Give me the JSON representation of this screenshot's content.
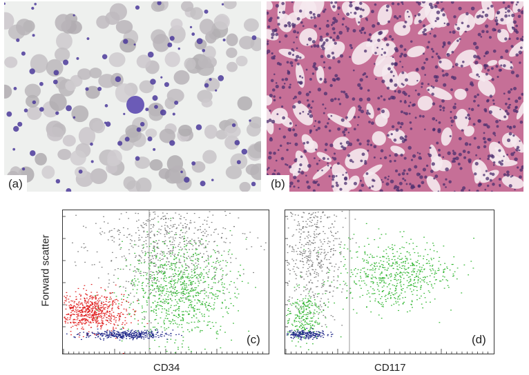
{
  "panels": {
    "a": {
      "label": "(a)"
    },
    "b": {
      "label": "(b)"
    },
    "c": {
      "label": "(c)",
      "xlabel": "CD34"
    },
    "d": {
      "label": "(d)",
      "xlabel": "CD117"
    }
  },
  "shared_ylabel": "Forward scatter",
  "colors": {
    "red_cells": "#cfc2c6",
    "blood_bg": "#eef0ee",
    "stain_purple": "#4b3a9a",
    "tissue_pink": "#c66f97",
    "tissue_dark": "#4c2f6f",
    "dot_red": "#e02020",
    "dot_green": "#2fb52f",
    "dot_blue": "#1d2588",
    "dot_gray": "#7a7a7a"
  }
}
